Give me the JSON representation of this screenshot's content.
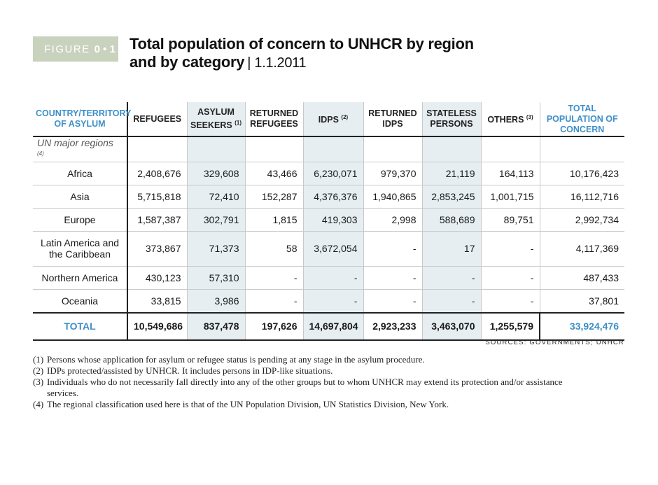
{
  "figure": {
    "label": "FIGURE",
    "number": "0 • 1"
  },
  "title": {
    "line1": "Total population of concern to UNHCR by region",
    "line2": "and by category",
    "date": "| 1.1.2011"
  },
  "table": {
    "headers": {
      "country": "COUNTRY/TERRITORY OF ASYLUM",
      "refugees": "REFUGEES",
      "asylum": "ASYLUM SEEKERS",
      "asylum_note": "(1)",
      "returned_refugees": "RETURNED REFUGEES",
      "idps": "IDPS",
      "idps_note": "(2)",
      "returned_idps": "RETURNED IDPS",
      "stateless": "STATELESS PERSONS",
      "others": "OTHERS",
      "others_note": "(3)",
      "total": "TOTAL POPULATION OF CONCERN"
    },
    "subheader": {
      "label": "UN major regions",
      "note": "(4)"
    },
    "rows": [
      {
        "region": "Africa",
        "values": [
          "2,408,676",
          "329,608",
          "43,466",
          "6,230,071",
          "979,370",
          "21,119",
          "164,113"
        ],
        "total": "10,176,423"
      },
      {
        "region": "Asia",
        "values": [
          "5,715,818",
          "72,410",
          "152,287",
          "4,376,376",
          "1,940,865",
          "2,853,245",
          "1,001,715"
        ],
        "total": "16,112,716"
      },
      {
        "region": "Europe",
        "values": [
          "1,587,387",
          "302,791",
          "1,815",
          "419,303",
          "2,998",
          "588,689",
          "89,751"
        ],
        "total": "2,992,734"
      },
      {
        "region": "Latin America and the Caribbean",
        "values": [
          "373,867",
          "71,373",
          "58",
          "3,672,054",
          "-",
          "17",
          "-"
        ],
        "total": "4,117,369"
      },
      {
        "region": "Northern America",
        "values": [
          "430,123",
          "57,310",
          "-",
          "-",
          "-",
          "-",
          "-"
        ],
        "total": "487,433"
      },
      {
        "region": "Oceania",
        "values": [
          "33,815",
          "3,986",
          "-",
          "-",
          "-",
          "-",
          "-"
        ],
        "total": "37,801"
      }
    ],
    "total_row": {
      "label": "TOTAL",
      "values": [
        "10,549,686",
        "837,478",
        "197,626",
        "14,697,804",
        "2,923,233",
        "3,463,070",
        "1,255,579"
      ],
      "total": "33,924,476"
    }
  },
  "sources": "SOURCES: GOVERNMENTS; UNHCR",
  "notes": [
    {
      "marker": "(1)",
      "text": "Persons whose application for asylum or refugee status is pending at any stage in the asylum procedure."
    },
    {
      "marker": "(2)",
      "text": "IDPs protected/assisted by UNHCR. It includes persons in IDP-like situations."
    },
    {
      "marker": "(3)",
      "text": "Individuals who do not necessarily fall directly into any of the other groups but to whom UNHCR may extend its protection and/or assistance services."
    },
    {
      "marker": "(4)",
      "text": "The regional classification used here is that of the UN Population Division, UN Statistics Division, New York."
    }
  ]
}
